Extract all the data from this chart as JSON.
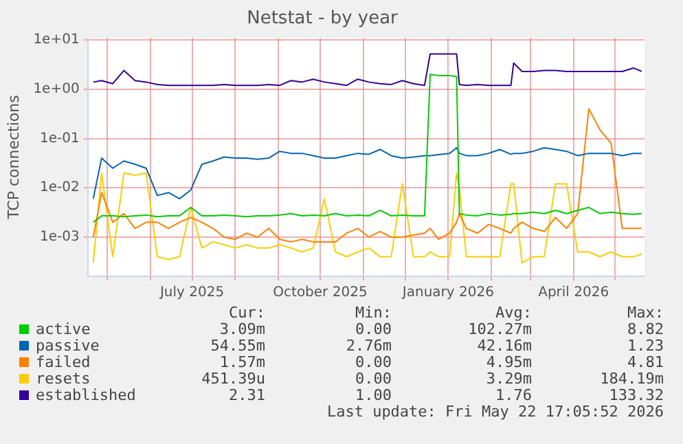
{
  "chart_data": {
    "type": "line",
    "title": "Netstat - by year",
    "ylabel": "TCP connections",
    "x": [
      "2025-04-21",
      "2025-04-27",
      "2025-05-05",
      "2025-05-13",
      "2025-05-21",
      "2025-05-29",
      "2025-06-06",
      "2025-06-14",
      "2025-06-22",
      "2025-06-30",
      "2025-07-08",
      "2025-07-16",
      "2025-07-24",
      "2025-08-01",
      "2025-08-09",
      "2025-08-17",
      "2025-08-25",
      "2025-09-02",
      "2025-09-10",
      "2025-09-18",
      "2025-09-26",
      "2025-10-04",
      "2025-10-12",
      "2025-10-20",
      "2025-10-28",
      "2025-11-05",
      "2025-11-13",
      "2025-11-21",
      "2025-11-29",
      "2025-12-07",
      "2025-12-15",
      "2025-12-19",
      "2025-12-25",
      "2026-01-02",
      "2026-01-07",
      "2026-01-09",
      "2026-01-14",
      "2026-01-22",
      "2026-01-30",
      "2026-02-07",
      "2026-02-15",
      "2026-02-17",
      "2026-02-23",
      "2026-03-03",
      "2026-03-11",
      "2026-03-19",
      "2026-03-27",
      "2026-04-04",
      "2026-04-12",
      "2026-04-20",
      "2026-04-28",
      "2026-05-06",
      "2026-05-14",
      "2026-05-20"
    ],
    "series": [
      {
        "name": "active",
        "color": "#00cc00",
        "values": [
          0.002,
          0.0027,
          0.0027,
          0.0026,
          0.0027,
          0.0028,
          0.0026,
          0.0027,
          0.0027,
          0.004,
          0.0027,
          0.0027,
          0.0028,
          0.0027,
          0.0026,
          0.0027,
          0.0027,
          0.0028,
          0.003,
          0.0027,
          0.0028,
          0.0027,
          0.003,
          0.0027,
          0.0028,
          0.0027,
          0.0035,
          0.0027,
          0.0028,
          0.0027,
          0.0027,
          2.0,
          1.9,
          1.9,
          1.8,
          0.003,
          0.0028,
          0.0027,
          0.003,
          0.0028,
          0.0029,
          0.003,
          0.003,
          0.0032,
          0.003,
          0.0035,
          0.003,
          0.0035,
          0.004,
          0.003,
          0.0032,
          0.003,
          0.0029,
          0.003
        ]
      },
      {
        "name": "passive",
        "color": "#0066b3",
        "values": [
          0.006,
          0.04,
          0.025,
          0.035,
          0.03,
          0.025,
          0.007,
          0.008,
          0.006,
          0.009,
          0.03,
          0.035,
          0.042,
          0.04,
          0.04,
          0.038,
          0.04,
          0.055,
          0.05,
          0.05,
          0.045,
          0.04,
          0.04,
          0.045,
          0.05,
          0.048,
          0.06,
          0.045,
          0.04,
          0.042,
          0.045,
          0.045,
          0.047,
          0.05,
          0.065,
          0.05,
          0.045,
          0.045,
          0.05,
          0.06,
          0.048,
          0.05,
          0.05,
          0.055,
          0.065,
          0.06,
          0.055,
          0.045,
          0.05,
          0.05,
          0.05,
          0.045,
          0.05,
          0.05
        ]
      },
      {
        "name": "failed",
        "color": "#ff8000",
        "values": [
          0.001,
          0.008,
          0.002,
          0.003,
          0.0015,
          0.002,
          0.002,
          0.0015,
          0.002,
          0.0025,
          0.002,
          0.0015,
          0.001,
          0.0009,
          0.0012,
          0.001,
          0.0015,
          0.0009,
          0.0008,
          0.0009,
          0.0008,
          0.0008,
          0.0008,
          0.0012,
          0.0015,
          0.001,
          0.0013,
          0.001,
          0.001,
          0.0011,
          0.0012,
          0.0015,
          0.0009,
          0.0012,
          0.002,
          0.003,
          0.0015,
          0.0012,
          0.0018,
          0.0015,
          0.0012,
          0.0015,
          0.002,
          0.0015,
          0.0013,
          0.0025,
          0.0015,
          0.003,
          0.4,
          0.15,
          0.08,
          0.0015,
          0.0015,
          0.0015
        ]
      },
      {
        "name": "resets",
        "color": "#ffcc00",
        "values": [
          0.0003,
          0.02,
          0.0004,
          0.02,
          0.018,
          0.02,
          0.0004,
          0.00035,
          0.0004,
          0.004,
          0.0006,
          0.0008,
          0.0007,
          0.0006,
          0.0007,
          0.0006,
          0.0006,
          0.0007,
          0.0006,
          0.0005,
          0.0006,
          0.006,
          0.0005,
          0.0004,
          0.0005,
          0.0006,
          0.0004,
          0.0004,
          0.012,
          0.0004,
          0.0004,
          0.0005,
          0.0004,
          0.0004,
          0.02,
          0.01,
          0.0004,
          0.0004,
          0.0004,
          0.0004,
          0.012,
          0.012,
          0.0003,
          0.0004,
          0.0004,
          0.012,
          0.012,
          0.0005,
          0.0005,
          0.0004,
          0.0005,
          0.0004,
          0.0004,
          0.00045
        ]
      },
      {
        "name": "established",
        "color": "#330099",
        "values": [
          1.4,
          1.5,
          1.3,
          2.4,
          1.5,
          1.4,
          1.25,
          1.2,
          1.2,
          1.2,
          1.2,
          1.2,
          1.25,
          1.2,
          1.2,
          1.2,
          1.25,
          1.2,
          1.5,
          1.4,
          1.6,
          1.4,
          1.3,
          1.2,
          1.6,
          1.4,
          1.3,
          1.25,
          1.5,
          1.3,
          1.2,
          5.2,
          5.2,
          5.2,
          5.2,
          1.25,
          1.2,
          1.25,
          1.2,
          1.2,
          1.2,
          3.4,
          2.3,
          2.3,
          2.4,
          2.4,
          2.3,
          2.3,
          2.3,
          2.3,
          2.3,
          2.3,
          2.7,
          2.3
        ]
      }
    ],
    "xlim": [
      "2025-04-17",
      "2026-05-22"
    ],
    "xticks": [
      {
        "value": "2025-05-01",
        "label": null
      },
      {
        "value": "2025-06-01",
        "label": null
      },
      {
        "value": "2025-07-01",
        "label": "July 2025"
      },
      {
        "value": "2025-08-01",
        "label": null
      },
      {
        "value": "2025-09-01",
        "label": null
      },
      {
        "value": "2025-10-01",
        "label": "October 2025"
      },
      {
        "value": "2025-11-01",
        "label": null
      },
      {
        "value": "2025-12-01",
        "label": null
      },
      {
        "value": "2026-01-01",
        "label": "January 2026"
      },
      {
        "value": "2026-02-01",
        "label": null
      },
      {
        "value": "2026-03-01",
        "label": null
      },
      {
        "value": "2026-04-01",
        "label": "April 2026"
      },
      {
        "value": "2026-05-01",
        "label": null
      }
    ],
    "ylim": [
      0.00016,
      11
    ],
    "yticks": [
      {
        "value": 10,
        "label": "1e+01"
      },
      {
        "value": 1,
        "label": "1e+00"
      },
      {
        "value": 0.1,
        "label": "1e-01"
      },
      {
        "value": 0.01,
        "label": "1e-02"
      },
      {
        "value": 0.001,
        "label": "1e-03"
      }
    ],
    "log": true,
    "grid": true,
    "legend": "bottom",
    "marker": "none",
    "line_style": "solid",
    "annotations": [
      "Cur:",
      "Min:",
      "Avg:",
      "Max:",
      "3.09m",
      "0.00",
      "102.27m",
      "8.82",
      "54.55m",
      "2.76m",
      "42.16m",
      "1.23",
      "1.57m",
      "0.00",
      "4.95m",
      "4.81",
      "451.39u",
      "0.00",
      "3.29m",
      "184.19m",
      "2.31",
      "1.00",
      "1.76",
      "133.32",
      "Last update: Fri May 22 17:05:52 2026"
    ]
  }
}
